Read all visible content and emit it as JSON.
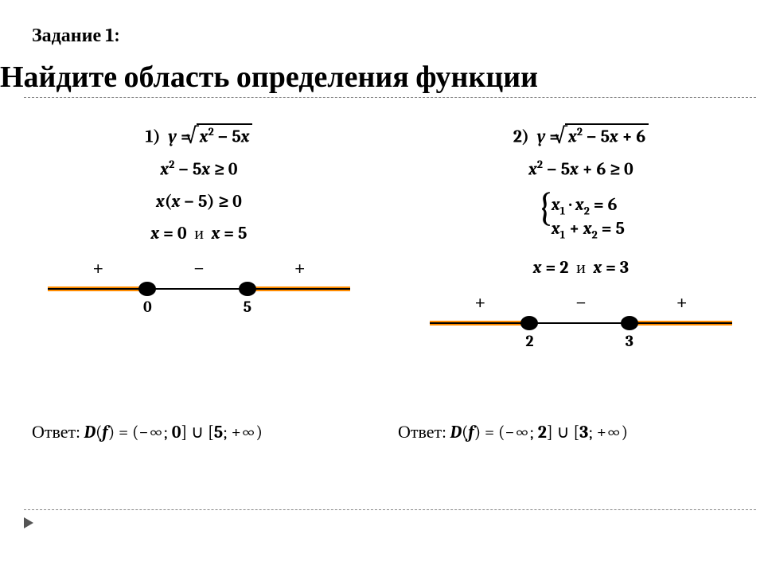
{
  "task_label": "Задание 1:",
  "title": "Найдите область определения функции",
  "colors": {
    "highlight": "#ff8c00",
    "text": "#000000",
    "bg": "#ffffff"
  },
  "left": {
    "num": "1)",
    "func_lhs": "y =",
    "radicand": "x² − 5x",
    "ineq": "x² − 5x ≥ 0",
    "factored": "x(x − 5) ≥ 0",
    "roots_a": "x = 0",
    "roots_conn": "и",
    "roots_b": "x = 5",
    "signs": {
      "a": "+",
      "b": "−",
      "c": "+"
    },
    "points": {
      "a": "0",
      "b": "5"
    },
    "answer_label": "Ответ:",
    "answer_sym": "D(f) =",
    "answer_val": "(−∞; 0] ∪ [5; +∞)"
  },
  "right": {
    "num": "2)",
    "func_lhs": "y =",
    "radicand": "x² − 5x + 6",
    "ineq": "x² − 5x + 6 ≥ 0",
    "vieta1": "x₁ · x₂ = 6",
    "vieta2": "x₁ + x₂ = 5",
    "roots_a": "x = 2",
    "roots_conn": "и",
    "roots_b": "x = 3",
    "signs": {
      "a": "+",
      "b": "−",
      "c": "+"
    },
    "points": {
      "a": "2",
      "b": "3"
    },
    "answer_label": "Ответ:",
    "answer_sym": "D(f) =",
    "answer_val": "(−∞; 2] ∪ [3; +∞)"
  }
}
